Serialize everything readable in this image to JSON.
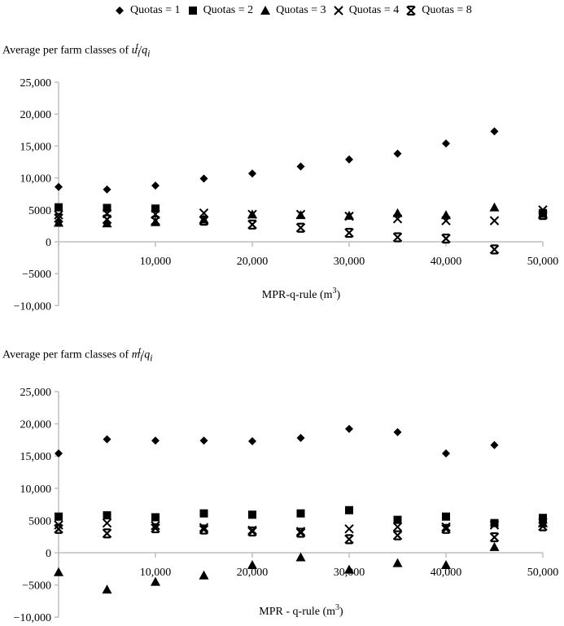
{
  "legend": [
    {
      "label": "Quotas = 1",
      "marker": "diamond"
    },
    {
      "label": "Quotas = 2",
      "marker": "square"
    },
    {
      "label": "Quotas = 3",
      "marker": "triangle"
    },
    {
      "label": "Quotas = 4",
      "marker": "x-cross"
    },
    {
      "label": "Quotas = 8",
      "marker": "asterisk"
    }
  ],
  "panels": [
    {
      "title_prefix": "Average per farm classes of ",
      "title_var": "u",
      "xlabel": "MPR-q-rule (m",
      "xlabel_sup": "3",
      "xlabel_suffix": ")"
    },
    {
      "title_prefix": "Average per farm classes of ",
      "title_var": "m",
      "xlabel": "MPR - q-rule (m",
      "xlabel_sup": "3",
      "xlabel_suffix": ")"
    }
  ],
  "chart_data": [
    {
      "type": "scatter",
      "title": "Average per farm classes of u_i^t/q_i",
      "xlabel": "MPR-q-rule (m3)",
      "ylabel": "",
      "xlim": [
        0,
        50000
      ],
      "ylim": [
        -10000,
        25000
      ],
      "xticks": [
        "10,000",
        "20,000",
        "30,000",
        "40,000",
        "50,000"
      ],
      "yticks": [
        "25,000",
        "20,000",
        "15,000",
        "10,000",
        "5000",
        "0",
        "-5000",
        "-10,000"
      ],
      "grid": false,
      "legend_position": "top",
      "x": [
        0,
        5000,
        10000,
        15000,
        20000,
        25000,
        30000,
        35000,
        40000,
        45000,
        50000
      ],
      "series": [
        {
          "name": "Quotas = 1",
          "marker": "diamond",
          "values": [
            8600,
            8200,
            8800,
            9900,
            10700,
            11800,
            12900,
            13800,
            15400,
            17300,
            null
          ]
        },
        {
          "name": "Quotas = 2",
          "marker": "square",
          "values": [
            5400,
            5300,
            5200,
            null,
            null,
            null,
            null,
            null,
            null,
            null,
            4500
          ]
        },
        {
          "name": "Quotas = 3",
          "marker": "triangle",
          "values": [
            3000,
            2900,
            3100,
            3500,
            4300,
            4200,
            4100,
            4500,
            4200,
            5400,
            4400
          ]
        },
        {
          "name": "Quotas = 4",
          "marker": "x-cross",
          "values": [
            4200,
            4400,
            4300,
            4500,
            4300,
            4300,
            4000,
            3600,
            3300,
            3300,
            5000
          ]
        },
        {
          "name": "Quotas = 8",
          "marker": "asterisk",
          "values": [
            3700,
            3500,
            3300,
            3300,
            2700,
            2200,
            1400,
            700,
            500,
            -1200,
            4200
          ]
        }
      ]
    },
    {
      "type": "scatter",
      "title": "Average per farm classes of m_i^t/q_i",
      "xlabel": "MPR - q-rule (m3)",
      "ylabel": "",
      "xlim": [
        0,
        50000
      ],
      "ylim": [
        -10000,
        25000
      ],
      "xticks": [
        "10,000",
        "20,000",
        "30,000",
        "40,000",
        "50,000"
      ],
      "yticks": [
        "25,000",
        "20,000",
        "15,000",
        "10,000",
        "5000",
        "0",
        "-5000",
        "-10,000"
      ],
      "grid": false,
      "legend_position": "top",
      "x": [
        0,
        5000,
        10000,
        15000,
        20000,
        25000,
        30000,
        35000,
        40000,
        45000,
        50000
      ],
      "series": [
        {
          "name": "Quotas = 1",
          "marker": "diamond",
          "values": [
            15400,
            17600,
            17400,
            17400,
            17300,
            17800,
            19200,
            18700,
            15400,
            16700,
            null
          ]
        },
        {
          "name": "Quotas = 2",
          "marker": "square",
          "values": [
            5600,
            5800,
            5500,
            6100,
            5900,
            6100,
            6600,
            5100,
            5600,
            4600,
            5400
          ]
        },
        {
          "name": "Quotas = 3",
          "marker": "triangle",
          "values": [
            -3000,
            -5700,
            -4500,
            -3500,
            -1900,
            -700,
            -2600,
            -1600,
            -1900,
            900,
            4600
          ]
        },
        {
          "name": "Quotas = 4",
          "marker": "x-cross",
          "values": [
            4300,
            4600,
            4200,
            3900,
            3500,
            3300,
            3700,
            4000,
            4000,
            4300,
            4700
          ]
        },
        {
          "name": "Quotas = 8",
          "marker": "asterisk",
          "values": [
            3700,
            3000,
            3800,
            3600,
            3300,
            3100,
            2100,
            2700,
            3700,
            2400,
            4100
          ]
        }
      ]
    }
  ]
}
